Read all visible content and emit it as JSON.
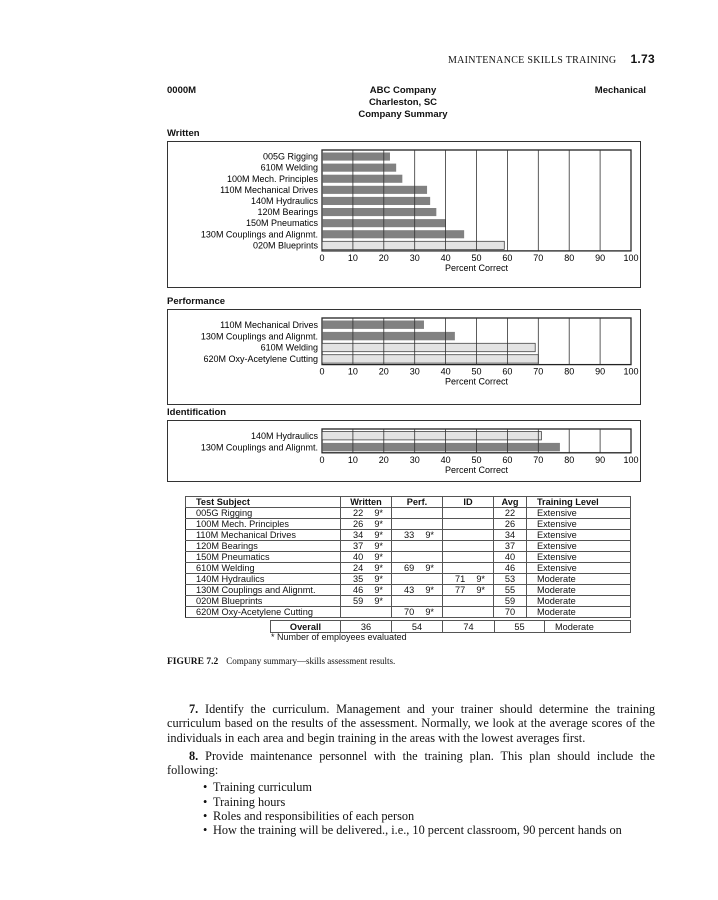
{
  "running_head": {
    "title": "MAINTENANCE SKILLS TRAINING",
    "page": "1.73"
  },
  "report_header": {
    "code": "0000M",
    "company": "ABC Company",
    "location": "Charleston, SC",
    "subtitle": "Company Summary",
    "category": "Mechanical"
  },
  "chart_data": [
    {
      "type": "bar",
      "orientation": "horizontal",
      "section": "Written",
      "xlabel": "Percent Correct",
      "xlim": [
        0,
        100
      ],
      "xticks": [
        "0",
        "10",
        "20",
        "30",
        "40",
        "50",
        "60",
        "70",
        "80",
        "90",
        "100"
      ],
      "grid": true,
      "categories": [
        "005G Rigging",
        "610M Welding",
        "100M Mech. Principles",
        "110M Mechanical Drives",
        "140M Hydraulics",
        "120M Bearings",
        "150M Pneumatics",
        "130M Couplings and Alignmt.",
        "020M Blueprints"
      ],
      "values": [
        22,
        24,
        26,
        34,
        35,
        37,
        40,
        46,
        59
      ],
      "shades": [
        "dark",
        "dark",
        "dark",
        "dark",
        "dark",
        "dark",
        "dark",
        "dark",
        "light"
      ]
    },
    {
      "type": "bar",
      "orientation": "horizontal",
      "section": "Performance",
      "xlabel": "Percent Correct",
      "xlim": [
        0,
        100
      ],
      "xticks": [
        "0",
        "10",
        "20",
        "30",
        "40",
        "50",
        "60",
        "70",
        "80",
        "90",
        "100"
      ],
      "grid": true,
      "categories": [
        "110M Mechanical Drives",
        "130M Couplings and Alignmt.",
        "610M Welding",
        "620M Oxy-Acetylene Cutting"
      ],
      "values": [
        33,
        43,
        69,
        70
      ],
      "shades": [
        "dark",
        "dark",
        "light",
        "light"
      ]
    },
    {
      "type": "bar",
      "orientation": "horizontal",
      "section": "Identification",
      "xlabel": "Percent Correct",
      "xlim": [
        0,
        100
      ],
      "xticks": [
        "0",
        "10",
        "20",
        "30",
        "40",
        "50",
        "60",
        "70",
        "80",
        "90",
        "100"
      ],
      "grid": true,
      "categories": [
        "140M Hydraulics",
        "130M Couplings and Alignmt."
      ],
      "values": [
        71,
        77
      ],
      "shades": [
        "light",
        "dark"
      ]
    }
  ],
  "colors": {
    "dark_bar": "#818181",
    "light_bar": "#e3e3e3",
    "grid": "#333333"
  },
  "table": {
    "headers": [
      "Test Subject",
      "Written",
      "Perf.",
      "ID",
      "Avg",
      "Training Level"
    ],
    "rows": [
      {
        "subject": "005G Rigging",
        "written": "22",
        "written_n": "9*",
        "perf": "",
        "perf_n": "",
        "id": "",
        "id_n": "",
        "avg": "22",
        "level": "Extensive"
      },
      {
        "subject": "100M Mech. Principles",
        "written": "26",
        "written_n": "9*",
        "perf": "",
        "perf_n": "",
        "id": "",
        "id_n": "",
        "avg": "26",
        "level": "Extensive"
      },
      {
        "subject": "110M Mechanical Drives",
        "written": "34",
        "written_n": "9*",
        "perf": "33",
        "perf_n": "9*",
        "id": "",
        "id_n": "",
        "avg": "34",
        "level": "Extensive"
      },
      {
        "subject": "120M Bearings",
        "written": "37",
        "written_n": "9*",
        "perf": "",
        "perf_n": "",
        "id": "",
        "id_n": "",
        "avg": "37",
        "level": "Extensive"
      },
      {
        "subject": "150M Pneumatics",
        "written": "40",
        "written_n": "9*",
        "perf": "",
        "perf_n": "",
        "id": "",
        "id_n": "",
        "avg": "40",
        "level": "Extensive"
      },
      {
        "subject": "610M Welding",
        "written": "24",
        "written_n": "9*",
        "perf": "69",
        "perf_n": "9*",
        "id": "",
        "id_n": "",
        "avg": "46",
        "level": "Extensive"
      },
      {
        "subject": "140M Hydraulics",
        "written": "35",
        "written_n": "9*",
        "perf": "",
        "perf_n": "",
        "id": "71",
        "id_n": "9*",
        "avg": "53",
        "level": "Moderate"
      },
      {
        "subject": "130M Couplings and Alignmt.",
        "written": "46",
        "written_n": "9*",
        "perf": "43",
        "perf_n": "9*",
        "id": "77",
        "id_n": "9*",
        "avg": "55",
        "level": "Moderate"
      },
      {
        "subject": "020M Blueprints",
        "written": "59",
        "written_n": "9*",
        "perf": "",
        "perf_n": "",
        "id": "",
        "id_n": "",
        "avg": "59",
        "level": "Moderate"
      },
      {
        "subject": "620M Oxy-Acetylene Cutting",
        "written": "",
        "written_n": "",
        "perf": "70",
        "perf_n": "9*",
        "id": "",
        "id_n": "",
        "avg": "70",
        "level": "Moderate"
      }
    ],
    "overall": {
      "label": "Overall",
      "written": "36",
      "perf": "54",
      "id": "74",
      "avg": "55",
      "level": "Moderate"
    },
    "footnote": "* Number of employees evaluated"
  },
  "figure": {
    "label": "FIGURE 7.2",
    "caption": "Company summary—skills assessment results."
  },
  "body": {
    "para7_num": "7.",
    "para7": "Identify the curriculum. Management and your trainer should determine the training curriculum based on the results of the assessment. Normally, we look at the average scores of the individuals in each area and begin training in the areas with the lowest averages first.",
    "para8_num": "8.",
    "para8": "Provide maintenance personnel with the training plan. This plan should include the following:",
    "bullets": [
      "Training curriculum",
      "Training hours",
      "Roles and responsibilities of each person",
      "How the training will be delivered., i.e., 10 percent classroom, 90 percent hands on"
    ]
  }
}
